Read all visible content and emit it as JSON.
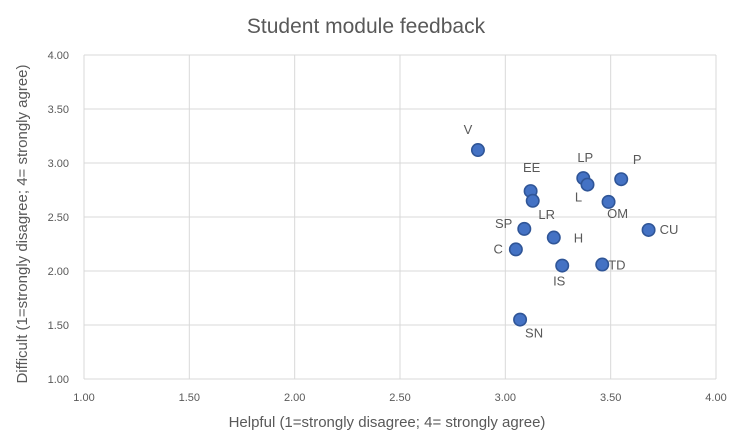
{
  "chart_data": {
    "type": "scatter",
    "title": "Student module feedback",
    "xlabel": "Helpful (1=strongly disagree; 4= strongly agree)",
    "ylabel": "Difficult (1=strongly disagree; 4= strongly agree)",
    "xlim": [
      1.0,
      4.0
    ],
    "ylim": [
      1.0,
      4.0
    ],
    "x_ticks": [
      "1.00",
      "1.50",
      "2.00",
      "2.50",
      "3.00",
      "3.50",
      "4.00"
    ],
    "y_ticks": [
      "1.00",
      "1.50",
      "2.00",
      "2.50",
      "3.00",
      "3.50",
      "4.00"
    ],
    "grid": true,
    "legend": "none",
    "marker_color": "#4472c4",
    "marker_edge_color": "#2f5597",
    "points": [
      {
        "label": "V",
        "x": 2.87,
        "y": 3.12
      },
      {
        "label": "LP",
        "x": 3.37,
        "y": 2.86
      },
      {
        "label": "P",
        "x": 3.55,
        "y": 2.85
      },
      {
        "label": "L",
        "x": 3.39,
        "y": 2.8
      },
      {
        "label": "EE",
        "x": 3.12,
        "y": 2.74
      },
      {
        "label": "LR",
        "x": 3.13,
        "y": 2.65
      },
      {
        "label": "OM",
        "x": 3.49,
        "y": 2.64
      },
      {
        "label": "SP",
        "x": 3.09,
        "y": 2.39
      },
      {
        "label": "CU",
        "x": 3.68,
        "y": 2.38
      },
      {
        "label": "H",
        "x": 3.23,
        "y": 2.31
      },
      {
        "label": "C",
        "x": 3.05,
        "y": 2.2
      },
      {
        "label": "TD",
        "x": 3.46,
        "y": 2.06
      },
      {
        "label": "IS",
        "x": 3.27,
        "y": 2.05
      },
      {
        "label": "SN",
        "x": 3.07,
        "y": 1.55
      }
    ]
  }
}
